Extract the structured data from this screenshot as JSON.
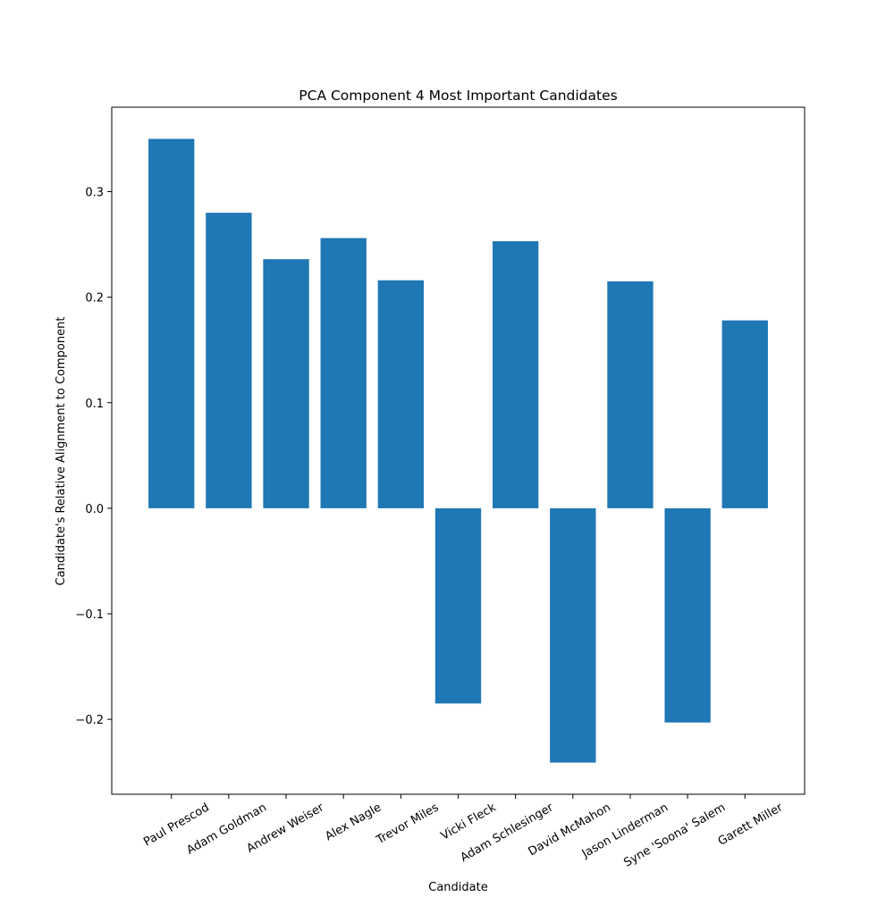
{
  "chart_data": {
    "type": "bar",
    "title": "PCA Component 4 Most Important Candidates",
    "xlabel": "Candidate",
    "ylabel": "Candidate's Relative Alignment to Component",
    "categories": [
      "Paul Prescod",
      "Adam Goldman",
      "Andrew Weiser",
      "Alex Nagle",
      "Trevor Miles",
      "Vicki Fleck",
      "Adam Schlesinger",
      "David McMahon",
      "Jason Linderman",
      "Syne 'Soona' Salem",
      "Garett Miller"
    ],
    "values": [
      0.35,
      0.28,
      0.236,
      0.256,
      0.216,
      -0.185,
      0.253,
      -0.241,
      0.215,
      -0.203,
      0.178
    ],
    "ylim": [
      -0.271,
      0.38
    ],
    "yticks": [
      -0.2,
      -0.1,
      0.0,
      0.1,
      0.2,
      0.3
    ],
    "ytick_labels": [
      "−0.2",
      "−0.1",
      "0.0",
      "0.1",
      "0.2",
      "0.3"
    ],
    "bar_color": "#1f77b4",
    "grid": false,
    "legend": "none"
  }
}
